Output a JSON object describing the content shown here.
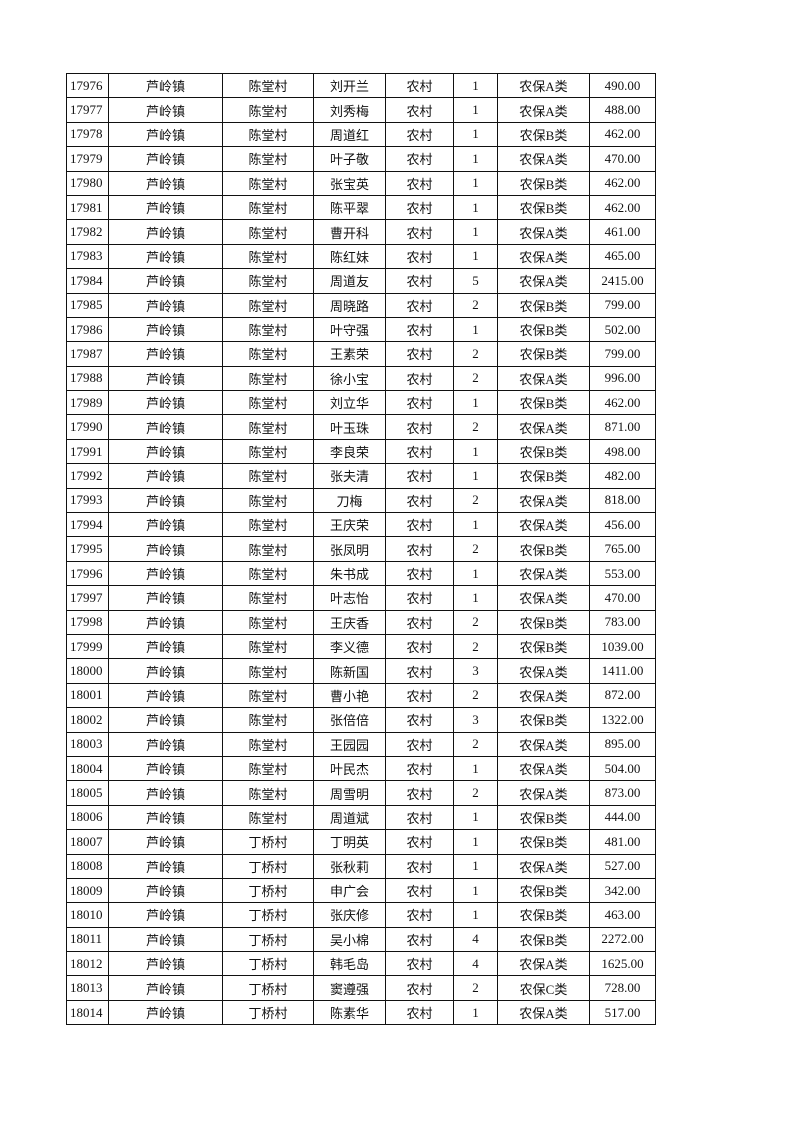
{
  "table": {
    "rows": [
      [
        "17976",
        "芦岭镇",
        "陈堂村",
        "刘开兰",
        "农村",
        "1",
        "农保A类",
        "490.00"
      ],
      [
        "17977",
        "芦岭镇",
        "陈堂村",
        "刘秀梅",
        "农村",
        "1",
        "农保A类",
        "488.00"
      ],
      [
        "17978",
        "芦岭镇",
        "陈堂村",
        "周道红",
        "农村",
        "1",
        "农保B类",
        "462.00"
      ],
      [
        "17979",
        "芦岭镇",
        "陈堂村",
        "叶子敬",
        "农村",
        "1",
        "农保A类",
        "470.00"
      ],
      [
        "17980",
        "芦岭镇",
        "陈堂村",
        "张宝英",
        "农村",
        "1",
        "农保B类",
        "462.00"
      ],
      [
        "17981",
        "芦岭镇",
        "陈堂村",
        "陈平翠",
        "农村",
        "1",
        "农保B类",
        "462.00"
      ],
      [
        "17982",
        "芦岭镇",
        "陈堂村",
        "曹开科",
        "农村",
        "1",
        "农保A类",
        "461.00"
      ],
      [
        "17983",
        "芦岭镇",
        "陈堂村",
        "陈红妹",
        "农村",
        "1",
        "农保A类",
        "465.00"
      ],
      [
        "17984",
        "芦岭镇",
        "陈堂村",
        "周道友",
        "农村",
        "5",
        "农保A类",
        "2415.00"
      ],
      [
        "17985",
        "芦岭镇",
        "陈堂村",
        "周晓路",
        "农村",
        "2",
        "农保B类",
        "799.00"
      ],
      [
        "17986",
        "芦岭镇",
        "陈堂村",
        "叶守强",
        "农村",
        "1",
        "农保B类",
        "502.00"
      ],
      [
        "17987",
        "芦岭镇",
        "陈堂村",
        "王素荣",
        "农村",
        "2",
        "农保B类",
        "799.00"
      ],
      [
        "17988",
        "芦岭镇",
        "陈堂村",
        "徐小宝",
        "农村",
        "2",
        "农保A类",
        "996.00"
      ],
      [
        "17989",
        "芦岭镇",
        "陈堂村",
        "刘立华",
        "农村",
        "1",
        "农保B类",
        "462.00"
      ],
      [
        "17990",
        "芦岭镇",
        "陈堂村",
        "叶玉珠",
        "农村",
        "2",
        "农保A类",
        "871.00"
      ],
      [
        "17991",
        "芦岭镇",
        "陈堂村",
        "李良荣",
        "农村",
        "1",
        "农保B类",
        "498.00"
      ],
      [
        "17992",
        "芦岭镇",
        "陈堂村",
        "张夫清",
        "农村",
        "1",
        "农保B类",
        "482.00"
      ],
      [
        "17993",
        "芦岭镇",
        "陈堂村",
        "刀梅",
        "农村",
        "2",
        "农保A类",
        "818.00"
      ],
      [
        "17994",
        "芦岭镇",
        "陈堂村",
        "王庆荣",
        "农村",
        "1",
        "农保A类",
        "456.00"
      ],
      [
        "17995",
        "芦岭镇",
        "陈堂村",
        "张凤明",
        "农村",
        "2",
        "农保B类",
        "765.00"
      ],
      [
        "17996",
        "芦岭镇",
        "陈堂村",
        "朱书成",
        "农村",
        "1",
        "农保A类",
        "553.00"
      ],
      [
        "17997",
        "芦岭镇",
        "陈堂村",
        "叶志怡",
        "农村",
        "1",
        "农保A类",
        "470.00"
      ],
      [
        "17998",
        "芦岭镇",
        "陈堂村",
        "王庆香",
        "农村",
        "2",
        "农保B类",
        "783.00"
      ],
      [
        "17999",
        "芦岭镇",
        "陈堂村",
        "李义德",
        "农村",
        "2",
        "农保B类",
        "1039.00"
      ],
      [
        "18000",
        "芦岭镇",
        "陈堂村",
        "陈新国",
        "农村",
        "3",
        "农保A类",
        "1411.00"
      ],
      [
        "18001",
        "芦岭镇",
        "陈堂村",
        "曹小艳",
        "农村",
        "2",
        "农保A类",
        "872.00"
      ],
      [
        "18002",
        "芦岭镇",
        "陈堂村",
        "张倍倍",
        "农村",
        "3",
        "农保B类",
        "1322.00"
      ],
      [
        "18003",
        "芦岭镇",
        "陈堂村",
        "王园园",
        "农村",
        "2",
        "农保A类",
        "895.00"
      ],
      [
        "18004",
        "芦岭镇",
        "陈堂村",
        "叶民杰",
        "农村",
        "1",
        "农保A类",
        "504.00"
      ],
      [
        "18005",
        "芦岭镇",
        "陈堂村",
        "周雪明",
        "农村",
        "2",
        "农保A类",
        "873.00"
      ],
      [
        "18006",
        "芦岭镇",
        "陈堂村",
        "周道斌",
        "农村",
        "1",
        "农保B类",
        "444.00"
      ],
      [
        "18007",
        "芦岭镇",
        "丁桥村",
        "丁明英",
        "农村",
        "1",
        "农保B类",
        "481.00"
      ],
      [
        "18008",
        "芦岭镇",
        "丁桥村",
        "张秋莉",
        "农村",
        "1",
        "农保A类",
        "527.00"
      ],
      [
        "18009",
        "芦岭镇",
        "丁桥村",
        "申广会",
        "农村",
        "1",
        "农保B类",
        "342.00"
      ],
      [
        "18010",
        "芦岭镇",
        "丁桥村",
        "张庆修",
        "农村",
        "1",
        "农保B类",
        "463.00"
      ],
      [
        "18011",
        "芦岭镇",
        "丁桥村",
        "吴小棉",
        "农村",
        "4",
        "农保B类",
        "2272.00"
      ],
      [
        "18012",
        "芦岭镇",
        "丁桥村",
        "韩毛岛",
        "农村",
        "4",
        "农保A类",
        "1625.00"
      ],
      [
        "18013",
        "芦岭镇",
        "丁桥村",
        "窦遵强",
        "农村",
        "2",
        "农保C类",
        "728.00"
      ],
      [
        "18014",
        "芦岭镇",
        "丁桥村",
        "陈素华",
        "农村",
        "1",
        "农保A类",
        "517.00"
      ]
    ]
  }
}
